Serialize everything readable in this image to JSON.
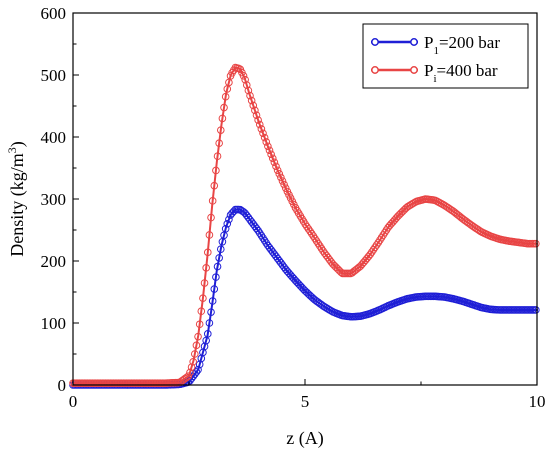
{
  "chart_data": {
    "type": "scatter",
    "xlabel": "z (A)",
    "ylabel_main": "Density (kg/m",
    "ylabel_sup": "3",
    "ylabel_close": ")",
    "xlim": [
      0,
      10
    ],
    "ylim": [
      0,
      600
    ],
    "xticks": [
      0,
      5,
      10
    ],
    "yticks": [
      0,
      100,
      200,
      300,
      400,
      500,
      600
    ],
    "legend_position": "top-right",
    "grid": false,
    "series": [
      {
        "legend_main": "P",
        "legend_sub": "1",
        "legend_rest": "=200 bar",
        "color": "#1f1fd6",
        "points": [
          [
            0.0,
            0
          ],
          [
            0.5,
            0
          ],
          [
            1.0,
            0
          ],
          [
            1.5,
            0
          ],
          [
            2.0,
            0
          ],
          [
            2.3,
            1
          ],
          [
            2.5,
            5
          ],
          [
            2.7,
            25
          ],
          [
            2.9,
            80
          ],
          [
            3.0,
            130
          ],
          [
            3.1,
            185
          ],
          [
            3.2,
            225
          ],
          [
            3.3,
            255
          ],
          [
            3.4,
            275
          ],
          [
            3.5,
            283
          ],
          [
            3.6,
            283
          ],
          [
            3.7,
            278
          ],
          [
            3.8,
            268
          ],
          [
            4.0,
            248
          ],
          [
            4.2,
            225
          ],
          [
            4.4,
            205
          ],
          [
            4.6,
            185
          ],
          [
            4.8,
            168
          ],
          [
            5.0,
            152
          ],
          [
            5.2,
            138
          ],
          [
            5.4,
            127
          ],
          [
            5.6,
            118
          ],
          [
            5.8,
            112
          ],
          [
            6.0,
            110
          ],
          [
            6.2,
            111
          ],
          [
            6.4,
            115
          ],
          [
            6.6,
            121
          ],
          [
            6.8,
            128
          ],
          [
            7.0,
            134
          ],
          [
            7.2,
            139
          ],
          [
            7.4,
            142
          ],
          [
            7.6,
            143
          ],
          [
            7.8,
            143
          ],
          [
            8.0,
            142
          ],
          [
            8.2,
            139
          ],
          [
            8.4,
            135
          ],
          [
            8.6,
            130
          ],
          [
            8.8,
            125
          ],
          [
            9.0,
            122
          ],
          [
            9.2,
            121
          ],
          [
            9.4,
            121
          ],
          [
            9.6,
            121
          ],
          [
            9.8,
            121
          ],
          [
            10.0,
            121
          ]
        ]
      },
      {
        "legend_main": "P",
        "legend_sub": "i",
        "legend_rest": "=400 bar",
        "color": "#e84545",
        "points": [
          [
            0.0,
            3
          ],
          [
            0.5,
            3
          ],
          [
            1.0,
            3
          ],
          [
            1.5,
            3
          ],
          [
            2.0,
            3
          ],
          [
            2.3,
            4
          ],
          [
            2.5,
            15
          ],
          [
            2.6,
            40
          ],
          [
            2.7,
            80
          ],
          [
            2.8,
            140
          ],
          [
            2.9,
            210
          ],
          [
            3.0,
            290
          ],
          [
            3.1,
            360
          ],
          [
            3.2,
            420
          ],
          [
            3.3,
            470
          ],
          [
            3.4,
            500
          ],
          [
            3.5,
            512
          ],
          [
            3.6,
            510
          ],
          [
            3.7,
            495
          ],
          [
            3.8,
            470
          ],
          [
            4.0,
            425
          ],
          [
            4.2,
            385
          ],
          [
            4.4,
            348
          ],
          [
            4.6,
            315
          ],
          [
            4.8,
            285
          ],
          [
            5.0,
            260
          ],
          [
            5.2,
            238
          ],
          [
            5.4,
            215
          ],
          [
            5.6,
            195
          ],
          [
            5.8,
            180
          ],
          [
            6.0,
            180
          ],
          [
            6.2,
            192
          ],
          [
            6.4,
            210
          ],
          [
            6.6,
            232
          ],
          [
            6.8,
            255
          ],
          [
            7.0,
            272
          ],
          [
            7.2,
            287
          ],
          [
            7.4,
            296
          ],
          [
            7.6,
            300
          ],
          [
            7.8,
            298
          ],
          [
            8.0,
            290
          ],
          [
            8.2,
            280
          ],
          [
            8.4,
            268
          ],
          [
            8.6,
            257
          ],
          [
            8.8,
            247
          ],
          [
            9.0,
            240
          ],
          [
            9.2,
            235
          ],
          [
            9.4,
            232
          ],
          [
            9.6,
            230
          ],
          [
            9.8,
            228
          ],
          [
            10.0,
            228
          ]
        ]
      }
    ]
  }
}
